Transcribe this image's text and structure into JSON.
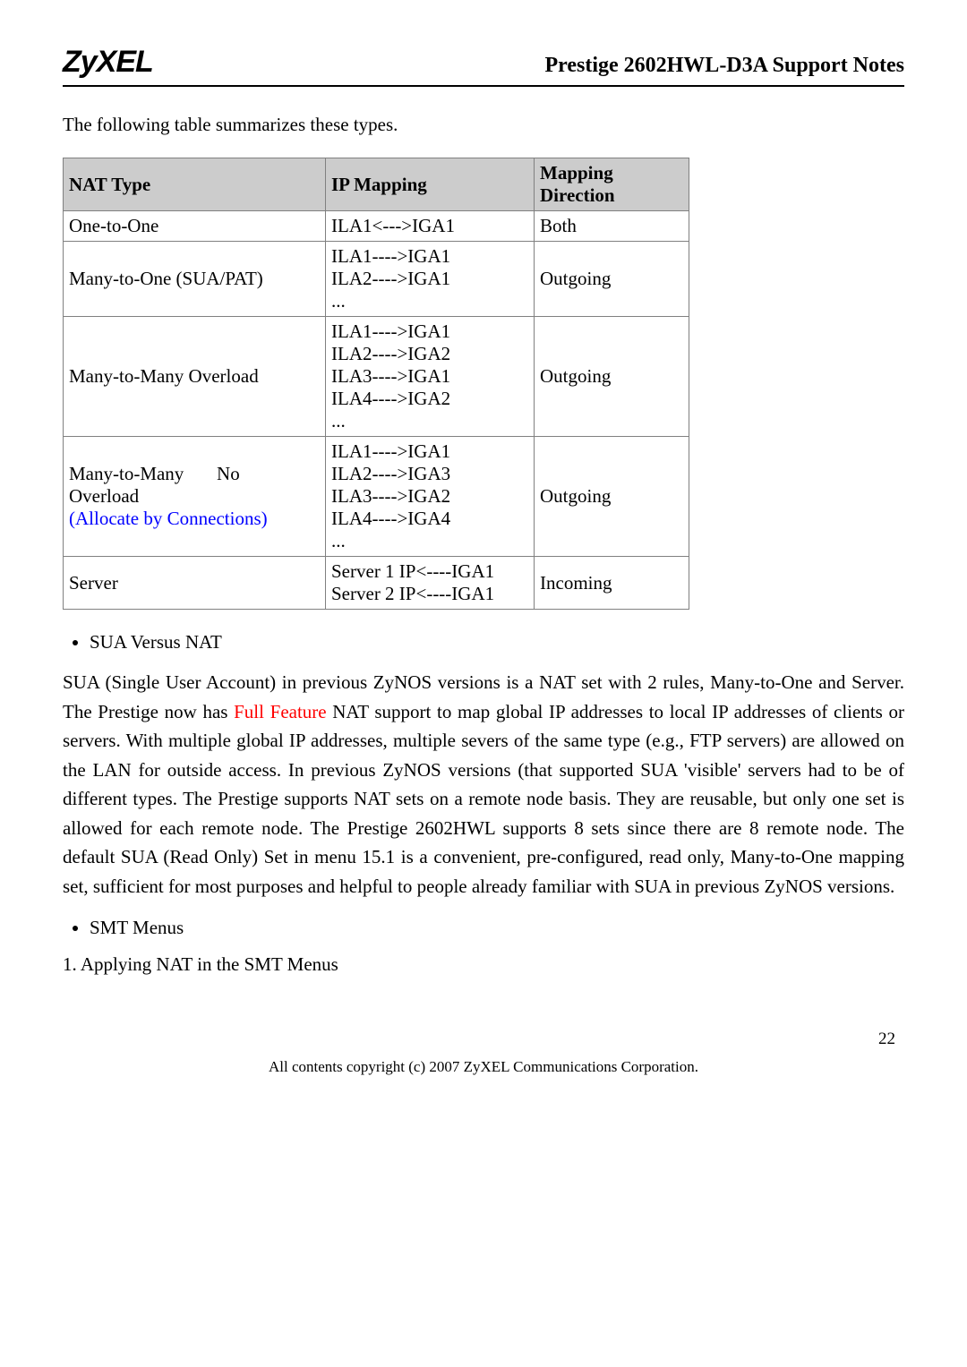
{
  "header": {
    "logo_text": "ZyXEL",
    "doc_title": "Prestige 2602HWL-D3A Support Notes"
  },
  "intro_text": "The following table summarizes these types.",
  "table": {
    "headers": {
      "col1": "NAT Type",
      "col2": "IP Mapping",
      "col3_line1": "Mapping",
      "col3_line2": "Direction"
    },
    "rows": {
      "r1": {
        "type": "One-to-One",
        "mapping": "ILA1<--->IGA1",
        "dir": "Both"
      },
      "r2": {
        "type": "Many-to-One (SUA/PAT)",
        "m1": "ILA1---->IGA1",
        "m2": "ILA2---->IGA1",
        "m3": "...",
        "dir": "Outgoing"
      },
      "r3": {
        "type": "Many-to-Many Overload",
        "m1": "ILA1---->IGA1",
        "m2": "ILA2---->IGA2",
        "m3": "ILA3---->IGA1",
        "m4": "ILA4---->IGA2",
        "m5": "...",
        "dir": "Outgoing"
      },
      "r4": {
        "type_l1": "Many-to-Many       No",
        "type_l2": "Overload",
        "type_l3": "(Allocate by Connections)",
        "m1": "ILA1---->IGA1",
        "m2": "ILA2---->IGA3",
        "m3": "ILA3---->IGA2",
        "m4": "ILA4---->IGA4",
        "m5": "...",
        "dir": "Outgoing"
      },
      "r5": {
        "type": "Server",
        "m1": "Server 1 IP<----IGA1",
        "m2": "Server 2 IP<----IGA1",
        "dir": "Incoming"
      }
    }
  },
  "bullet_sua": "SUA Versus NAT",
  "para_sua_1": "SUA (Single User Account) in previous ZyNOS versions is a NAT set with 2 rules, Many-to-One and Server. The Prestige now has ",
  "para_sua_red": "Full Feature",
  "para_sua_2": " NAT support to map global IP addresses to local IP addresses of clients or servers. With multiple global IP addresses, multiple severs of the same type (e.g., FTP servers) are allowed on the LAN for outside access. In previous ZyNOS versions (that supported SUA 'visible' servers had to be of different types. The Prestige supports NAT sets on a remote node basis. They are reusable, but only one set is allowed for each remote node. The Prestige 2602HWL supports 8 sets since there are 8 remote node. The default SUA (Read Only) Set in menu 15.1 is a convenient, pre-configured, read only, Many-to-One mapping set, sufficient for most purposes and helpful to people already familiar with SUA in previous ZyNOS versions.",
  "bullet_smt": "SMT Menus",
  "heading_apply": "1. Applying NAT in the SMT Menus",
  "page_number": "22",
  "footer_text": "All contents copyright (c) 2007 ZyXEL Communications Corporation."
}
